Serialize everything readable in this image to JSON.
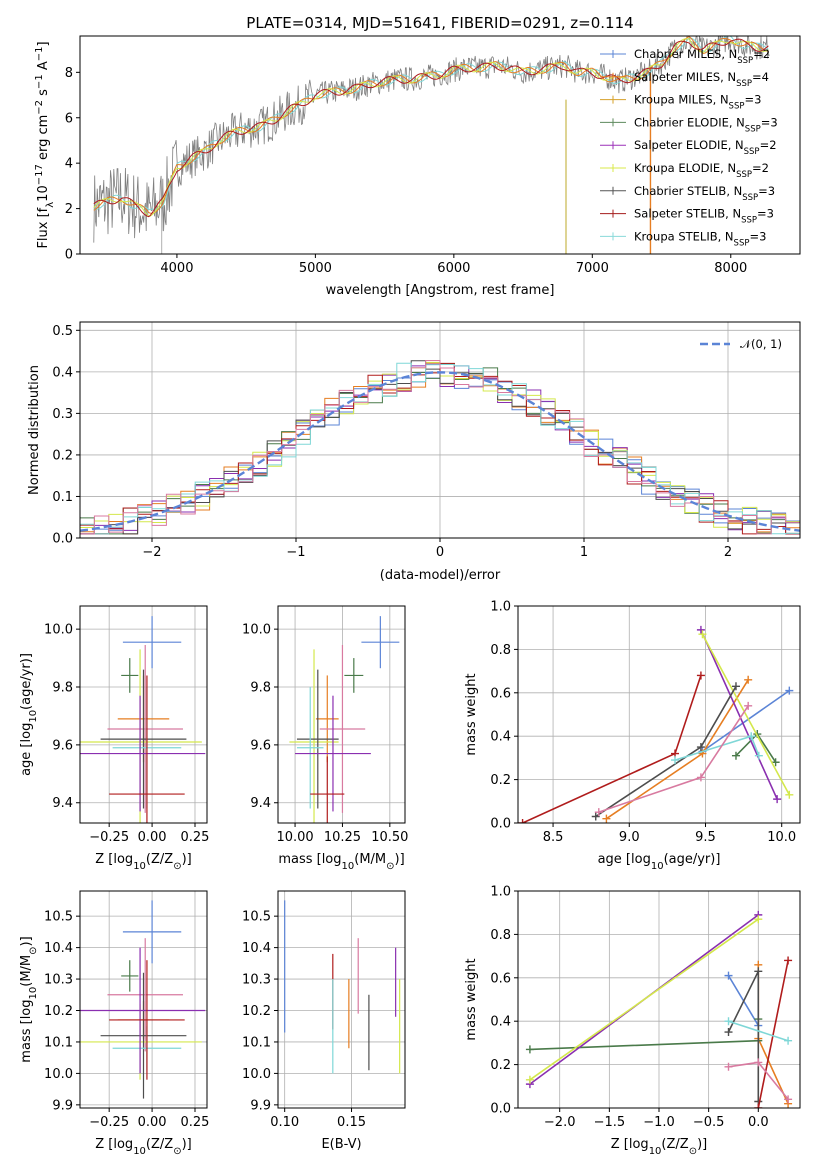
{
  "colors": [
    "#5b84d6",
    "#e67e22",
    "#d87a2b",
    "#4a7a4a",
    "#8a2fb0",
    "#d4e84c",
    "#4d4d4d",
    "#b01c1c",
    "#7fd7d7",
    "#d83aa0"
  ],
  "models": [
    {
      "label": "Chabrier MILES, N",
      "sub": "SSP",
      "suffix": "=2",
      "color": "#5b84d6"
    },
    {
      "label": "Salpeter MILES, N",
      "sub": "SSP",
      "suffix": "=4",
      "color": "#e67e22"
    },
    {
      "label": "Kroupa MILES, N",
      "sub": "SSP",
      "suffix": "=3",
      "color": "#d6a02a"
    },
    {
      "label": "Chabrier ELODIE, N",
      "sub": "SSP",
      "suffix": "=3",
      "color": "#5d8a5d"
    },
    {
      "label": "Salpeter ELODIE, N",
      "sub": "SSP",
      "suffix": "=2",
      "color": "#9b30b8"
    },
    {
      "label": "Kroupa ELODIE, N",
      "sub": "SSP",
      "suffix": "=2",
      "color": "#d9e84a"
    },
    {
      "label": "Chabrier STELIB, N",
      "sub": "SSP",
      "suffix": "=3",
      "color": "#555555"
    },
    {
      "label": "Salpeter STELIB, N",
      "sub": "SSP",
      "suffix": "=3",
      "color": "#a51c1c"
    },
    {
      "label": "Kroupa STELIB, N",
      "sub": "SSP",
      "suffix": "=3",
      "color": "#8adada"
    }
  ],
  "chart_data": [
    {
      "type": "line",
      "id": "spectrum",
      "title": "PLATE=0314, MJD=51641, FIBERID=0291, z=0.114",
      "xlabel": "wavelength [Angstrom, rest frame]",
      "ylabel": "Flux [f",
      "ylabel_sub": "λ",
      "ylabel_rest": "10",
      "ylabel_exp": "−17",
      "ylabel_tail": " erg cm",
      "xlim": [
        3300,
        8500
      ],
      "ylim": [
        0,
        9.6
      ],
      "xticks": [
        "4000",
        "5000",
        "6000",
        "7000",
        "8000"
      ],
      "xtick_values": [
        4000,
        5000,
        6000,
        7000,
        8000
      ],
      "yticks": [
        "0",
        "2",
        "4",
        "6",
        "8"
      ],
      "ytick_values": [
        0,
        2,
        4,
        6,
        8
      ],
      "continuum_x": [
        3400,
        3500,
        3600,
        3700,
        3800,
        3900,
        4000,
        4100,
        4200,
        4300,
        4400,
        4500,
        4600,
        4700,
        4800,
        4900,
        5000,
        5100,
        5200,
        5300,
        5400,
        5500,
        5600,
        5700,
        5800,
        5900,
        6000,
        6100,
        6200,
        6300,
        6400,
        6500,
        6600,
        6700,
        6800,
        6900,
        7000,
        7100,
        7200,
        7300,
        7400,
        7500,
        7600,
        7700,
        7800,
        7900,
        8000,
        8100,
        8200
      ],
      "continuum_y": [
        2.1,
        2.3,
        2.5,
        2.1,
        1.8,
        2.3,
        3.8,
        4.2,
        4.5,
        5.0,
        5.3,
        5.5,
        5.6,
        5.9,
        6.3,
        6.6,
        7.0,
        7.1,
        7.2,
        7.3,
        7.5,
        7.6,
        7.7,
        7.7,
        7.8,
        7.9,
        8.1,
        8.2,
        8.2,
        8.3,
        8.2,
        8.0,
        8.1,
        8.2,
        8.3,
        8.0,
        8.0,
        7.8,
        7.6,
        7.8,
        8.0,
        8.4,
        9.1,
        9.4,
        9.0,
        9.2,
        9.5,
        9.2,
        9.1
      ]
    },
    {
      "type": "bar",
      "id": "residuals",
      "xlabel": "(data-model)/error",
      "ylabel": "Normed distribution",
      "xlim": [
        -2.5,
        2.5
      ],
      "ylim": [
        0,
        0.52
      ],
      "xticks": [
        "−2",
        "−1",
        "0",
        "1",
        "2"
      ],
      "xtick_values": [
        -2,
        -1,
        0,
        1,
        2
      ],
      "yticks": [
        "0.0",
        "0.1",
        "0.2",
        "0.3",
        "0.4",
        "0.5"
      ],
      "ytick_values": [
        0,
        0.1,
        0.2,
        0.3,
        0.4,
        0.5
      ],
      "legend": "𝒩(0, 1)",
      "legend_position": "top-right",
      "bin_width": 0.1,
      "bin_start": -2.5
    },
    {
      "type": "scatter",
      "id": "age-vs-Z",
      "xlabel": "Z [log",
      "xlabel_sub": "10",
      "xlabel_rest": "(Z/Z",
      "xlabel_sub2": "⊙",
      "xlabel_tail": ")]",
      "ylabel": "age  [log",
      "ylabel_sub": "10",
      "ylabel_rest": "(age/yr)]",
      "xlim": [
        -0.42,
        0.32
      ],
      "ylim": [
        9.33,
        10.08
      ],
      "xticks": [
        "−0.25",
        "0.00",
        "0.25"
      ],
      "xtick_values": [
        -0.25,
        0,
        0.25
      ],
      "yticks": [
        "9.4",
        "9.6",
        "9.8",
        "10.0"
      ],
      "ytick_values": [
        9.4,
        9.6,
        9.8,
        10.0
      ],
      "points": [
        {
          "x": 0.0,
          "y": 9.955,
          "xerr": 0.17,
          "yerr": 0.09,
          "color": "#5b84d6"
        },
        {
          "x": -0.13,
          "y": 9.84,
          "xerr": 0.05,
          "yerr": 0.06,
          "color": "#4a7a4a"
        },
        {
          "x": -0.05,
          "y": 9.69,
          "xerr": 0.15,
          "yerr": 0.15,
          "color": "#e67e22"
        },
        {
          "x": -0.04,
          "y": 9.655,
          "xerr": 0.22,
          "yerr": 0.29,
          "color": "#d87aa0"
        },
        {
          "x": -0.07,
          "y": 9.61,
          "xerr": 0.36,
          "yerr": 0.32,
          "color": "#d4e84c"
        },
        {
          "x": -0.05,
          "y": 9.62,
          "xerr": 0.25,
          "yerr": 0.24,
          "color": "#4d4d4d"
        },
        {
          "x": -0.03,
          "y": 9.59,
          "xerr": 0.2,
          "yerr": 0.21,
          "color": "#7fd7d7"
        },
        {
          "x": -0.07,
          "y": 9.57,
          "xerr": 0.38,
          "yerr": 0.2,
          "color": "#8a2fb0"
        },
        {
          "x": -0.03,
          "y": 9.43,
          "xerr": 0.22,
          "yerr": 0.41,
          "color": "#b01c1c"
        }
      ]
    },
    {
      "type": "scatter",
      "id": "age-vs-mass",
      "xlabel": "mass [log",
      "xlabel_sub": "10",
      "xlabel_rest": "(M/M",
      "xlabel_sub2": "⊙",
      "xlabel_tail": ")]",
      "xlim": [
        9.91,
        10.58
      ],
      "ylim": [
        9.33,
        10.08
      ],
      "xticks": [
        "10.00",
        "10.25",
        "10.50"
      ],
      "xtick_values": [
        10.0,
        10.25,
        10.5
      ],
      "yticks": [
        "9.4",
        "9.6",
        "9.8",
        "10.0"
      ],
      "ytick_values": [
        9.4,
        9.6,
        9.8,
        10.0
      ],
      "points": [
        {
          "x": 10.45,
          "y": 9.955,
          "xerr": 0.1,
          "yerr": 0.09,
          "color": "#5b84d6"
        },
        {
          "x": 10.31,
          "y": 9.84,
          "xerr": 0.05,
          "yerr": 0.06,
          "color": "#4a7a4a"
        },
        {
          "x": 10.17,
          "y": 9.69,
          "xerr": 0.06,
          "yerr": 0.15,
          "color": "#e67e22"
        },
        {
          "x": 10.25,
          "y": 9.655,
          "xerr": 0.12,
          "yerr": 0.29,
          "color": "#d87aa0"
        },
        {
          "x": 10.1,
          "y": 9.61,
          "xerr": 0.13,
          "yerr": 0.32,
          "color": "#d4e84c"
        },
        {
          "x": 10.12,
          "y": 9.62,
          "xerr": 0.11,
          "yerr": 0.24,
          "color": "#4d4d4d"
        },
        {
          "x": 10.08,
          "y": 9.59,
          "xerr": 0.07,
          "yerr": 0.21,
          "color": "#7fd7d7"
        },
        {
          "x": 10.2,
          "y": 9.57,
          "xerr": 0.2,
          "yerr": 0.2,
          "color": "#8a2fb0"
        },
        {
          "x": 10.17,
          "y": 9.43,
          "xerr": 0.09,
          "yerr": 0.13,
          "color": "#b01c1c"
        }
      ]
    },
    {
      "type": "line",
      "id": "weight-vs-age",
      "xlabel": "age  [log",
      "xlabel_sub": "10",
      "xlabel_rest": "(age/yr)]",
      "ylabel": "mass weight",
      "xlim": [
        8.27,
        10.12
      ],
      "ylim": [
        0,
        1
      ],
      "xticks": [
        "8.5",
        "9.0",
        "9.5",
        "10.0"
      ],
      "xtick_values": [
        8.5,
        9.0,
        9.5,
        10.0
      ],
      "yticks": [
        "0.0",
        "0.2",
        "0.4",
        "0.6",
        "0.8",
        "1.0"
      ],
      "ytick_values": [
        0,
        0.2,
        0.4,
        0.6,
        0.8,
        1.0
      ],
      "series": [
        {
          "color": "#5b84d6",
          "x": [
            9.48,
            10.05
          ],
          "y": [
            0.33,
            0.61
          ]
        },
        {
          "color": "#e67e22",
          "x": [
            8.85,
            9.48,
            9.78
          ],
          "y": [
            0.02,
            0.32,
            0.66
          ]
        },
        {
          "color": "#4a7a4a",
          "x": [
            9.7,
            9.84,
            9.96
          ],
          "y": [
            0.31,
            0.41,
            0.28
          ]
        },
        {
          "color": "#8a2fb0",
          "x": [
            9.47,
            9.97
          ],
          "y": [
            0.89,
            0.11
          ]
        },
        {
          "color": "#d4e84c",
          "x": [
            9.48,
            10.05
          ],
          "y": [
            0.87,
            0.13
          ]
        },
        {
          "color": "#4d4d4d",
          "x": [
            8.78,
            9.47,
            9.7
          ],
          "y": [
            0.03,
            0.35,
            0.63
          ]
        },
        {
          "color": "#b01c1c",
          "x": [
            8.3,
            9.3,
            9.47
          ],
          "y": [
            0.0,
            0.32,
            0.68
          ]
        },
        {
          "color": "#7fd7d7",
          "x": [
            9.3,
            9.8,
            9.85
          ],
          "y": [
            0.29,
            0.4,
            0.31
          ]
        },
        {
          "color": "#d87aa0",
          "x": [
            8.8,
            9.47,
            9.78
          ],
          "y": [
            0.05,
            0.21,
            0.54
          ]
        }
      ]
    },
    {
      "type": "scatter",
      "id": "mass-vs-Z",
      "ylabel": "mass [log",
      "ylabel_sub": "10",
      "ylabel_rest": "(M/M",
      "ylabel_sub2": "⊙",
      "ylabel_tail": ")]",
      "xlabel": "Z [log",
      "xlabel_sub": "10",
      "xlabel_rest": "(Z/Z",
      "xlabel_sub2": "⊙",
      "xlabel_tail": ")]",
      "xlim": [
        -0.42,
        0.32
      ],
      "ylim": [
        9.89,
        10.58
      ],
      "xticks": [
        "−0.25",
        "0.00",
        "0.25"
      ],
      "xtick_values": [
        -0.25,
        0,
        0.25
      ],
      "yticks": [
        "9.9",
        "10.0",
        "10.1",
        "10.2",
        "10.3",
        "10.4",
        "10.5"
      ],
      "ytick_values": [
        9.9,
        10.0,
        10.1,
        10.2,
        10.3,
        10.4,
        10.5
      ],
      "points": [
        {
          "x": 0.0,
          "y": 10.45,
          "xerr": 0.17,
          "yerr": 0.1,
          "color": "#5b84d6"
        },
        {
          "x": -0.13,
          "y": 10.31,
          "xerr": 0.05,
          "yerr": 0.05,
          "color": "#4a7a4a"
        },
        {
          "x": -0.05,
          "y": 10.17,
          "xerr": 0.15,
          "yerr": 0.06,
          "color": "#e67e22"
        },
        {
          "x": -0.04,
          "y": 10.25,
          "xerr": 0.22,
          "yerr": 0.18,
          "color": "#d87aa0"
        },
        {
          "x": -0.07,
          "y": 10.1,
          "xerr": 0.36,
          "yerr": 0.12,
          "color": "#d4e84c"
        },
        {
          "x": -0.05,
          "y": 10.12,
          "xerr": 0.25,
          "yerr": 0.2,
          "color": "#4d4d4d"
        },
        {
          "x": -0.03,
          "y": 10.08,
          "xerr": 0.2,
          "yerr": 0.07,
          "color": "#7fd7d7"
        },
        {
          "x": -0.07,
          "y": 10.2,
          "xerr": 0.38,
          "yerr": 0.2,
          "color": "#8a2fb0"
        },
        {
          "x": -0.03,
          "y": 10.17,
          "xerr": 0.22,
          "yerr": 0.19,
          "color": "#b01c1c"
        }
      ]
    },
    {
      "type": "scatter",
      "id": "mass-vs-EBV",
      "xlabel": "E(B-V)",
      "xlim": [
        0.095,
        0.19
      ],
      "ylim": [
        9.89,
        10.58
      ],
      "xticks": [
        "0.10",
        "0.15"
      ],
      "xtick_values": [
        0.1,
        0.15
      ],
      "yticks": [
        "9.9",
        "10.0",
        "10.1",
        "10.2",
        "10.3",
        "10.4",
        "10.5"
      ],
      "ytick_values": [
        9.9,
        10.0,
        10.1,
        10.2,
        10.3,
        10.4,
        10.5
      ],
      "points": [
        {
          "x": 0.1,
          "y": 10.34,
          "yerr": 0.21,
          "color": "#5b84d6"
        },
        {
          "x": 0.136,
          "y": 10.26,
          "yerr": 0.12,
          "color": "#b01c1c"
        },
        {
          "x": 0.136,
          "y": 10.15,
          "yerr": 0.15,
          "color": "#7fd7d7"
        },
        {
          "x": 0.148,
          "y": 10.19,
          "yerr": 0.11,
          "color": "#e67e22"
        },
        {
          "x": 0.155,
          "y": 10.31,
          "yerr": 0.12,
          "color": "#d87aa0"
        },
        {
          "x": 0.163,
          "y": 10.13,
          "yerr": 0.12,
          "color": "#4d4d4d"
        },
        {
          "x": 0.183,
          "y": 10.29,
          "yerr": 0.11,
          "color": "#8a2fb0"
        },
        {
          "x": 0.186,
          "y": 10.15,
          "yerr": 0.15,
          "color": "#d4e84c"
        }
      ]
    },
    {
      "type": "line",
      "id": "weight-vs-Z",
      "xlabel": "Z [log",
      "xlabel_sub": "10",
      "xlabel_rest": "(Z/Z",
      "xlabel_sub2": "⊙",
      "xlabel_tail": ")]",
      "ylabel": "mass weight",
      "xlim": [
        -2.42,
        0.42
      ],
      "ylim": [
        0,
        1
      ],
      "xticks": [
        "−2.0",
        "−1.5",
        "−1.0",
        "−0.5",
        "0.0"
      ],
      "xtick_values": [
        -2.0,
        -1.5,
        -1.0,
        -0.5,
        0.0
      ],
      "yticks": [
        "0.0",
        "0.2",
        "0.4",
        "0.6",
        "0.8",
        "1.0"
      ],
      "ytick_values": [
        0,
        0.2,
        0.4,
        0.6,
        0.8,
        1.0
      ],
      "series": [
        {
          "color": "#5b84d6",
          "x": [
            -0.3,
            0.0
          ],
          "y": [
            0.61,
            0.38
          ]
        },
        {
          "color": "#e67e22",
          "x": [
            0.0,
            0.0,
            0.3
          ],
          "y": [
            0.66,
            0.32,
            0.02
          ]
        },
        {
          "color": "#4a7a4a",
          "x": [
            -2.3,
            0.0,
            0.0
          ],
          "y": [
            0.27,
            0.31,
            0.41
          ]
        },
        {
          "color": "#8a2fb0",
          "x": [
            -2.3,
            0.0
          ],
          "y": [
            0.11,
            0.89
          ]
        },
        {
          "color": "#d4e84c",
          "x": [
            -2.3,
            0.0
          ],
          "y": [
            0.13,
            0.87
          ]
        },
        {
          "color": "#4d4d4d",
          "x": [
            -0.3,
            0.0,
            0.0
          ],
          "y": [
            0.35,
            0.63,
            0.03
          ]
        },
        {
          "color": "#b01c1c",
          "x": [
            0.0,
            0.3
          ],
          "y": [
            0.0,
            0.68
          ]
        },
        {
          "color": "#7fd7d7",
          "x": [
            -0.3,
            0.3
          ],
          "y": [
            0.4,
            0.31
          ]
        },
        {
          "color": "#d87aa0",
          "x": [
            -0.3,
            0.0,
            0.3
          ],
          "y": [
            0.19,
            0.21,
            0.04
          ]
        }
      ]
    }
  ]
}
